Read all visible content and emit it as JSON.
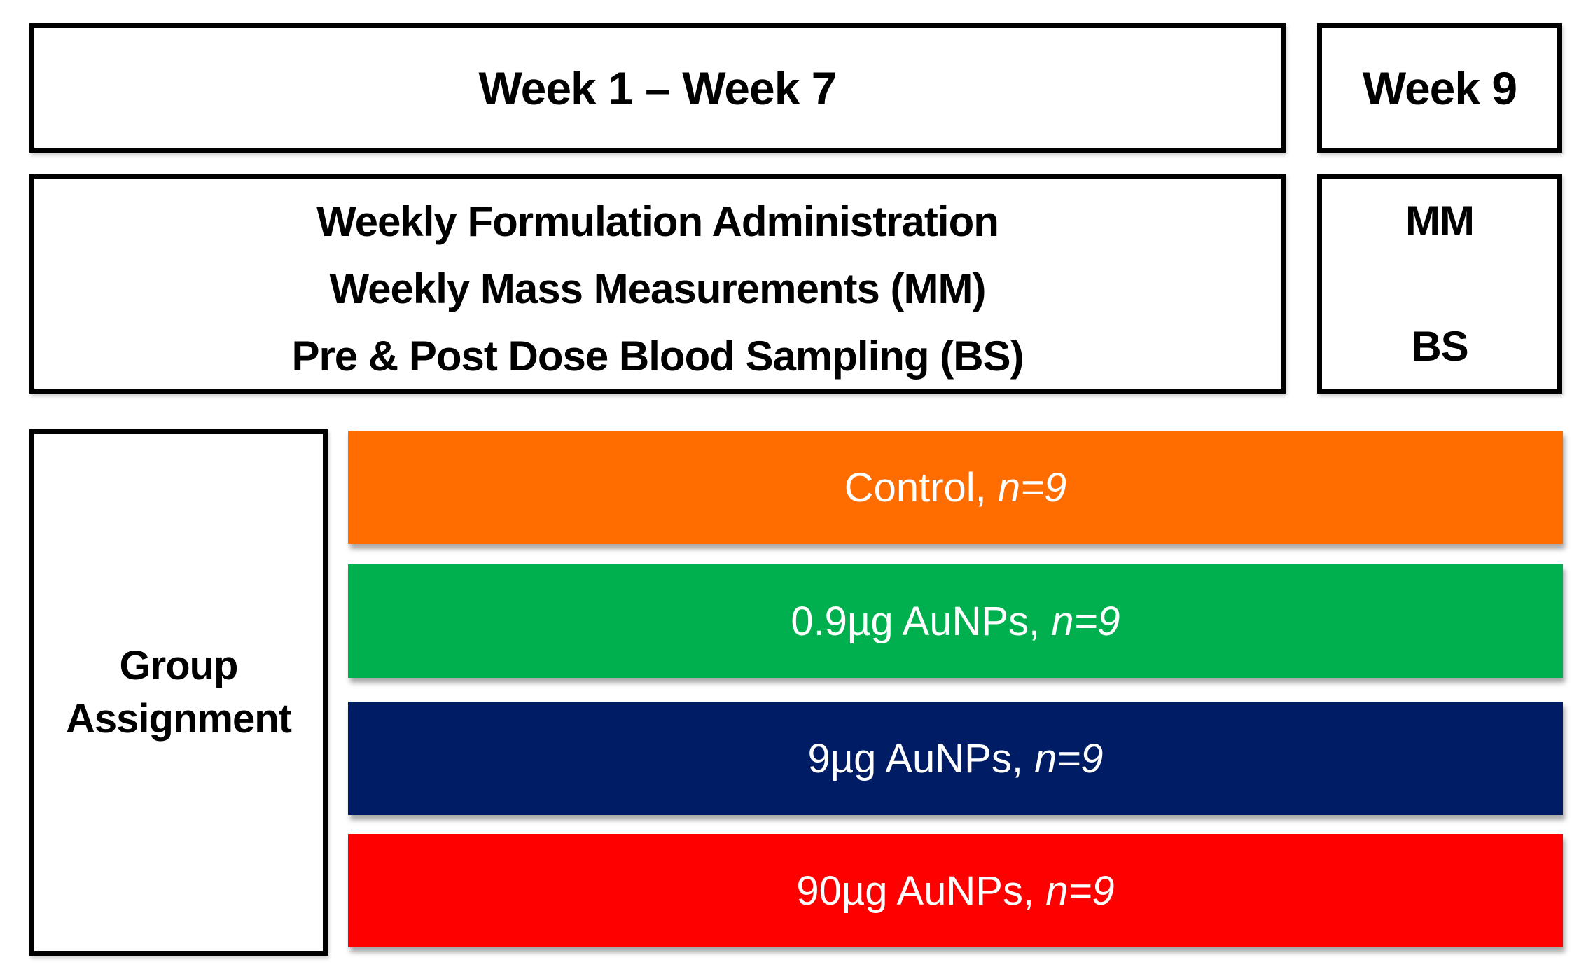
{
  "timeline": {
    "week_range_label": "Week 1 – Week 7",
    "week9_label": "Week 9",
    "activities_lines": [
      "Weekly Formulation Administration",
      "Weekly Mass Measurements (MM)",
      "Pre & Post Dose Blood Sampling (BS)"
    ],
    "week9_activities": {
      "mm": "MM",
      "bs": "BS"
    }
  },
  "group_assignment": {
    "label": "Group Assignment"
  },
  "groups": [
    {
      "label": "Control, ",
      "n": "n=9",
      "color": "#FF6D00"
    },
    {
      "label": "0.9µg AuNPs, ",
      "n": "n=9",
      "color": "#00B04E"
    },
    {
      "label": "9µg AuNPs, ",
      "n": "n=9",
      "color": "#001C64"
    },
    {
      "label": "90µg AuNPs, ",
      "n": "n=9",
      "color": "#FF0000"
    }
  ],
  "colors": {
    "box_border": "#000000",
    "bar_text": "#FFFFFF",
    "background": "#FFFFFF"
  }
}
